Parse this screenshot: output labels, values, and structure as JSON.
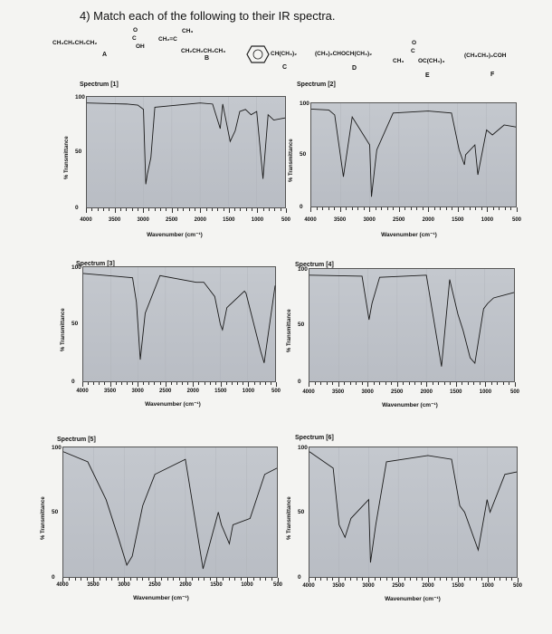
{
  "question": "4) Match each of the following to their IR spectra.",
  "compounds": [
    {
      "letter": "A",
      "formula": "CH₃CH₂CH₂CH₂C(=O)OH",
      "parts": [
        "CH₃CH₂CH₂CH₂",
        "O",
        "C",
        "OH"
      ]
    },
    {
      "letter": "B",
      "formula": "CH₂=C(CH₃)CH₂CH₂CH₂CH₃",
      "parts": [
        "CH₃",
        "CH₂=C",
        "CH₂CH₂CH₂CH₃"
      ]
    },
    {
      "letter": "C",
      "formula": "C₆H₅CH(CH₃)₂",
      "parts": [
        "CH(CH₃)₂"
      ]
    },
    {
      "letter": "D",
      "formula": "(CH₃)₂CHOCH(CH₃)₂",
      "parts": [
        "(CH₃)₂CHOCH(CH₃)₂"
      ]
    },
    {
      "letter": "E",
      "formula": "CH₃C(=O)OC(CH₃)₃",
      "parts": [
        "O",
        "C",
        "CH₃",
        "OC(CH₃)₃"
      ]
    },
    {
      "letter": "F",
      "formula": "(CH₃CH₂)₃COH",
      "parts": [
        "(CH₃CH₂)₃COH"
      ]
    }
  ],
  "axis": {
    "ylabel": "% Transmittance",
    "xlabel": "Wavenumber (cm⁻¹)",
    "yticks": [
      "100",
      "50",
      "0"
    ],
    "xticks": [
      "4000",
      "3500",
      "3000",
      "2500",
      "2000",
      "1500",
      "1000",
      "500"
    ]
  },
  "spectra": [
    {
      "title": "Spectrum [1]"
    },
    {
      "title": "Spectrum [2]"
    },
    {
      "title": "Spectrum [3]"
    },
    {
      "title": "Spectrum [4]"
    },
    {
      "title": "Spectrum [5]"
    },
    {
      "title": "Spectrum [6]"
    }
  ],
  "chart_data": [
    {
      "type": "line",
      "title": "Spectrum [1]",
      "xlabel": "Wavenumber (cm⁻¹)",
      "ylabel": "% Transmittance",
      "xlim": [
        4000,
        500
      ],
      "ylim": [
        0,
        100
      ],
      "x": [
        4000,
        3300,
        3100,
        3000,
        2960,
        2930,
        2870,
        2800,
        2000,
        1780,
        1645,
        1600,
        1470,
        1380,
        1300,
        1200,
        1100,
        1000,
        890,
        800,
        700,
        500
      ],
      "y": [
        96,
        95,
        94,
        90,
        20,
        30,
        45,
        92,
        96,
        95,
        72,
        95,
        60,
        70,
        88,
        90,
        85,
        88,
        25,
        85,
        80,
        82
      ]
    },
    {
      "type": "line",
      "title": "Spectrum [2]",
      "xlabel": "Wavenumber (cm⁻¹)",
      "ylabel": "% Transmittance",
      "xlim": [
        4000,
        500
      ],
      "ylim": [
        0,
        100
      ],
      "x": [
        4000,
        3700,
        3600,
        3450,
        3300,
        3000,
        2970,
        2880,
        2600,
        2000,
        1600,
        1470,
        1380,
        1360,
        1200,
        1150,
        1000,
        900,
        700,
        500
      ],
      "y": [
        96,
        95,
        90,
        28,
        88,
        60,
        8,
        55,
        92,
        94,
        92,
        55,
        40,
        50,
        60,
        30,
        75,
        70,
        80,
        78
      ]
    },
    {
      "type": "line",
      "title": "Spectrum [3]",
      "xlabel": "Wavenumber (cm⁻¹)",
      "ylabel": "% Transmittance",
      "xlim": [
        4000,
        500
      ],
      "ylim": [
        0,
        100
      ],
      "x": [
        4000,
        3100,
        3030,
        2960,
        2870,
        2600,
        1940,
        1800,
        1600,
        1500,
        1460,
        1380,
        1060,
        1030,
        760,
        700,
        500
      ],
      "y": [
        96,
        92,
        70,
        18,
        60,
        94,
        88,
        88,
        75,
        50,
        45,
        65,
        80,
        78,
        25,
        15,
        85
      ]
    },
    {
      "type": "line",
      "title": "Spectrum [4]",
      "xlabel": "Wavenumber (cm⁻¹)",
      "ylabel": "% Transmittance",
      "xlim": [
        4000,
        500
      ],
      "ylim": [
        0,
        100
      ],
      "x": [
        4000,
        3100,
        2980,
        2930,
        2800,
        2000,
        1740,
        1600,
        1460,
        1370,
        1250,
        1170,
        1020,
        950,
        850,
        500
      ],
      "y": [
        96,
        95,
        55,
        70,
        94,
        96,
        12,
        92,
        60,
        45,
        20,
        15,
        65,
        70,
        75,
        80
      ]
    },
    {
      "type": "line",
      "title": "Spectrum [5]",
      "xlabel": "Wavenumber (cm⁻¹)",
      "ylabel": "% Transmittance",
      "xlim": [
        4000,
        500
      ],
      "ylim": [
        0,
        100
      ],
      "x": [
        4000,
        3600,
        3300,
        3100,
        2960,
        2870,
        2700,
        2500,
        2000,
        1710,
        1460,
        1410,
        1280,
        1220,
        940,
        700,
        500
      ],
      "y": [
        98,
        90,
        60,
        30,
        8,
        15,
        55,
        80,
        92,
        5,
        50,
        40,
        25,
        40,
        45,
        80,
        85
      ]
    },
    {
      "type": "line",
      "title": "Spectrum [6]",
      "xlabel": "Wavenumber (cm⁻¹)",
      "ylabel": "% Transmittance",
      "xlim": [
        4000,
        500
      ],
      "ylim": [
        0,
        100
      ],
      "x": [
        4000,
        3600,
        3500,
        3400,
        3300,
        3000,
        2970,
        2880,
        2700,
        2000,
        1600,
        1460,
        1380,
        1150,
        1000,
        950,
        700,
        500
      ],
      "y": [
        98,
        85,
        40,
        30,
        45,
        60,
        10,
        40,
        90,
        95,
        92,
        55,
        50,
        20,
        60,
        50,
        80,
        82
      ]
    }
  ]
}
